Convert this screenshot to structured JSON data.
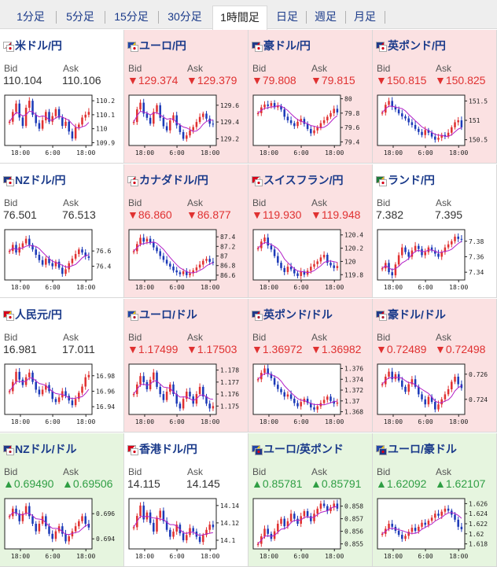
{
  "tabs": [
    {
      "label": "1分足",
      "active": false
    },
    {
      "label": "5分足",
      "active": false
    },
    {
      "label": "15分足",
      "active": false
    },
    {
      "label": "30分足",
      "active": false
    },
    {
      "label": "1時間足",
      "active": true
    },
    {
      "label": "日足",
      "active": false
    },
    {
      "label": "週足",
      "active": false
    },
    {
      "label": "月足",
      "active": false
    }
  ],
  "bid_label": "Bid",
  "ask_label": "Ask",
  "colors": {
    "down": "#e03131",
    "up": "#2f9e44",
    "title": "#1a3a8a",
    "ma_line": "#b320c8"
  },
  "pairs": [
    {
      "name": "米ドル/円",
      "flags": [
        "us",
        "jp"
      ],
      "bid": "110.104",
      "ask": "110.106",
      "trend": "neutral",
      "chart_data": {
        "type": "candlestick",
        "yticks": [
          "110.2",
          "110.1",
          "110",
          "109.9"
        ],
        "ylim": [
          109.88,
          110.24
        ],
        "xticks": [
          "18:00",
          "6:00",
          "18:00"
        ],
        "path": [
          110.05,
          110.12,
          110.18,
          110.08,
          110.02,
          110.15,
          110.2,
          110.1,
          110.04,
          110.0,
          110.06,
          110.12,
          110.05,
          110.09,
          110.14,
          110.08,
          110.02,
          110.05,
          109.98,
          109.93,
          110.01,
          110.03,
          110.08,
          110.1,
          110.12
        ]
      }
    },
    {
      "name": "ユーロ/円",
      "flags": [
        "eu",
        "jp"
      ],
      "bid": "▼129.374",
      "ask": "▼129.379",
      "trend": "down",
      "chart_data": {
        "type": "candlestick",
        "yticks": [
          "129.6",
          "129.4",
          "129.2"
        ],
        "ylim": [
          129.12,
          129.72
        ],
        "xticks": [
          "18:00",
          "6:00",
          "18:00"
        ],
        "path": [
          129.4,
          129.55,
          129.63,
          129.5,
          129.45,
          129.38,
          129.52,
          129.6,
          129.45,
          129.35,
          129.3,
          129.42,
          129.48,
          129.36,
          129.28,
          129.2,
          129.24,
          129.3,
          129.34,
          129.4,
          129.46,
          129.5,
          129.44,
          129.38,
          129.37
        ]
      }
    },
    {
      "name": "豪ドル/円",
      "flags": [
        "au",
        "jp"
      ],
      "bid": "▼79.808",
      "ask": "▼79.815",
      "trend": "down",
      "chart_data": {
        "type": "candlestick",
        "yticks": [
          "80",
          "79.8",
          "79.6",
          "79.4"
        ],
        "ylim": [
          79.35,
          80.05
        ],
        "xticks": [
          "18:00",
          "6:00",
          "18:00"
        ],
        "path": [
          79.8,
          79.88,
          79.92,
          79.9,
          79.94,
          79.88,
          79.9,
          79.85,
          79.75,
          79.7,
          79.66,
          79.62,
          79.68,
          79.72,
          79.65,
          79.58,
          79.52,
          79.56,
          79.6,
          79.66,
          79.7,
          79.75,
          79.8,
          79.86,
          79.81
        ]
      }
    },
    {
      "name": "英ポンド/円",
      "flags": [
        "uk",
        "jp"
      ],
      "bid": "▼150.815",
      "ask": "▼150.825",
      "trend": "down",
      "chart_data": {
        "type": "candlestick",
        "yticks": [
          "151.5",
          "151",
          "150.5"
        ],
        "ylim": [
          150.35,
          151.65
        ],
        "xticks": [
          "18:00",
          "6:00",
          "18:00"
        ],
        "path": [
          151.2,
          151.4,
          151.5,
          151.35,
          151.28,
          151.18,
          151.1,
          151.05,
          150.95,
          150.88,
          150.78,
          150.7,
          150.62,
          150.75,
          150.68,
          150.58,
          150.5,
          150.55,
          150.62,
          150.58,
          150.68,
          150.82,
          150.95,
          151.0,
          150.82
        ]
      }
    },
    {
      "name": "NZドル/円",
      "flags": [
        "nz",
        "jp"
      ],
      "bid": "76.501",
      "ask": "76.513",
      "trend": "neutral",
      "chart_data": {
        "type": "candlestick",
        "yticks": [
          "76.6",
          "76.4"
        ],
        "ylim": [
          76.22,
          76.88
        ],
        "xticks": [
          "18:00",
          "6:00",
          "18:00"
        ],
        "path": [
          76.6,
          76.68,
          76.58,
          76.65,
          76.7,
          76.76,
          76.68,
          76.62,
          76.55,
          76.48,
          76.42,
          76.5,
          76.44,
          76.4,
          76.46,
          76.38,
          76.3,
          76.36,
          76.44,
          76.5,
          76.56,
          76.62,
          76.58,
          76.53,
          76.51
        ]
      }
    },
    {
      "name": "カナダドル/円",
      "flags": [
        "ca",
        "jp"
      ],
      "bid": "▼86.860",
      "ask": "▼86.877",
      "trend": "down",
      "chart_data": {
        "type": "candlestick",
        "yticks": [
          "87.4",
          "87.2",
          "87",
          "86.8",
          "86.6"
        ],
        "ylim": [
          86.5,
          87.55
        ],
        "xticks": [
          "18:00",
          "6:00",
          "18:00"
        ],
        "path": [
          87.1,
          87.25,
          87.38,
          87.3,
          87.36,
          87.28,
          87.18,
          87.1,
          87.0,
          86.92,
          86.84,
          86.78,
          86.7,
          86.66,
          86.62,
          86.68,
          86.6,
          86.64,
          86.7,
          86.76,
          86.82,
          86.9,
          86.94,
          86.88,
          86.86
        ]
      }
    },
    {
      "name": "スイスフラン/円",
      "flags": [
        "ch",
        "jp"
      ],
      "bid": "▼119.930",
      "ask": "▼119.948",
      "trend": "down",
      "chart_data": {
        "type": "candlestick",
        "yticks": [
          "120.4",
          "120.2",
          "120",
          "119.8"
        ],
        "ylim": [
          119.72,
          120.48
        ],
        "xticks": [
          "18:00",
          "6:00",
          "18:00"
        ],
        "path": [
          120.2,
          120.3,
          120.36,
          120.24,
          120.18,
          120.08,
          119.98,
          119.9,
          119.84,
          119.92,
          119.88,
          119.82,
          119.78,
          119.85,
          119.8,
          119.86,
          119.92,
          119.96,
          120.0,
          120.06,
          120.1,
          119.98,
          119.94,
          119.9,
          119.93
        ]
      }
    },
    {
      "name": "ランド/円",
      "flags": [
        "za",
        "jp"
      ],
      "bid": "7.382",
      "ask": "7.395",
      "trend": "neutral",
      "chart_data": {
        "type": "candlestick",
        "yticks": [
          "7.38",
          "7.36",
          "7.34"
        ],
        "ylim": [
          7.33,
          7.395
        ],
        "xticks": [
          "18:00",
          "6:00",
          "18:00"
        ],
        "path": [
          7.345,
          7.352,
          7.34,
          7.336,
          7.35,
          7.362,
          7.372,
          7.366,
          7.36,
          7.368,
          7.374,
          7.37,
          7.362,
          7.366,
          7.372,
          7.368,
          7.364,
          7.36,
          7.366,
          7.372,
          7.376,
          7.38,
          7.386,
          7.383,
          7.382
        ]
      }
    },
    {
      "name": "人民元/円",
      "flags": [
        "cn",
        "jp"
      ],
      "bid": "16.981",
      "ask": "17.011",
      "trend": "neutral",
      "chart_data": {
        "type": "candlestick",
        "yticks": [
          "16.98",
          "16.96",
          "16.94"
        ],
        "ylim": [
          16.93,
          16.995
        ],
        "xticks": [
          "18:00",
          "6:00",
          "18:00"
        ],
        "path": [
          16.96,
          16.972,
          16.985,
          16.975,
          16.968,
          16.978,
          16.984,
          16.972,
          16.962,
          16.956,
          16.962,
          16.968,
          16.96,
          16.95,
          16.946,
          16.952,
          16.96,
          16.954,
          16.948,
          16.942,
          16.95,
          16.958,
          16.966,
          16.978,
          16.981
        ]
      }
    },
    {
      "name": "ユーロ/ドル",
      "flags": [
        "eu",
        "us"
      ],
      "bid": "▼1.17499",
      "ask": "▼1.17503",
      "trend": "down",
      "chart_data": {
        "type": "candlestick",
        "yticks": [
          "1.178",
          "1.177",
          "1.176",
          "1.175"
        ],
        "ylim": [
          1.1743,
          1.1785
        ],
        "xticks": [
          "18:00",
          "6:00",
          "18:00"
        ],
        "path": [
          1.176,
          1.1768,
          1.1775,
          1.177,
          1.1764,
          1.1772,
          1.1778,
          1.1766,
          1.176,
          1.1755,
          1.1762,
          1.1768,
          1.176,
          1.1752,
          1.1748,
          1.1756,
          1.1762,
          1.1758,
          1.1752,
          1.176,
          1.1766,
          1.1758,
          1.1752,
          1.1748,
          1.175
        ]
      }
    },
    {
      "name": "英ポンド/ドル",
      "flags": [
        "uk",
        "us"
      ],
      "bid": "▼1.36972",
      "ask": "▼1.36982",
      "trend": "down",
      "chart_data": {
        "type": "candlestick",
        "yticks": [
          "1.376",
          "1.374",
          "1.372",
          "1.37",
          "1.368"
        ],
        "ylim": [
          1.3675,
          1.3768
        ],
        "xticks": [
          "18:00",
          "6:00",
          "18:00"
        ],
        "path": [
          1.374,
          1.3752,
          1.376,
          1.375,
          1.3742,
          1.373,
          1.3722,
          1.3716,
          1.3708,
          1.3712,
          1.3704,
          1.3696,
          1.369,
          1.3698,
          1.3704,
          1.3696,
          1.3688,
          1.3684,
          1.369,
          1.3696,
          1.3702,
          1.3708,
          1.37,
          1.3695,
          1.3697
        ]
      }
    },
    {
      "name": "豪ドル/ドル",
      "flags": [
        "au",
        "us"
      ],
      "bid": "▼0.72489",
      "ask": "▼0.72498",
      "trend": "down",
      "chart_data": {
        "type": "candlestick",
        "yticks": [
          "0.726",
          "0.724"
        ],
        "ylim": [
          0.7228,
          0.7268
        ],
        "xticks": [
          "18:00",
          "6:00",
          "18:00"
        ],
        "path": [
          0.7252,
          0.7258,
          0.7262,
          0.7256,
          0.726,
          0.7255,
          0.725,
          0.7246,
          0.7252,
          0.7256,
          0.725,
          0.7244,
          0.724,
          0.7236,
          0.7242,
          0.7238,
          0.7232,
          0.7236,
          0.724,
          0.7244,
          0.7248,
          0.7254,
          0.7258,
          0.7252,
          0.7249
        ]
      }
    },
    {
      "name": "NZドル/ドル",
      "flags": [
        "nz",
        "us"
      ],
      "bid": "▲0.69490",
      "ask": "▲0.69506",
      "trend": "up",
      "chart_data": {
        "type": "candlestick",
        "yticks": [
          "0.696",
          "0.694"
        ],
        "ylim": [
          0.6932,
          0.6972
        ],
        "xticks": [
          "18:00",
          "6:00",
          "18:00"
        ],
        "path": [
          0.6958,
          0.6964,
          0.696,
          0.6954,
          0.696,
          0.6966,
          0.6958,
          0.6952,
          0.6946,
          0.6952,
          0.6958,
          0.695,
          0.6944,
          0.694,
          0.6946,
          0.695,
          0.6944,
          0.6938,
          0.6942,
          0.6946,
          0.695,
          0.6954,
          0.6958,
          0.6952,
          0.6949
        ]
      }
    },
    {
      "name": "香港ドル/円",
      "flags": [
        "hk",
        "jp"
      ],
      "bid": "14.115",
      "ask": "14.145",
      "trend": "neutral",
      "chart_data": {
        "type": "candlestick",
        "yticks": [
          "14.14",
          "14.12",
          "14.1"
        ],
        "ylim": [
          14.09,
          14.148
        ],
        "xticks": [
          "18:00",
          "6:00",
          "18:00"
        ],
        "path": [
          14.115,
          14.128,
          14.14,
          14.124,
          14.132,
          14.12,
          14.11,
          14.126,
          14.134,
          14.122,
          14.112,
          14.104,
          14.11,
          14.118,
          14.108,
          14.1,
          14.106,
          14.114,
          14.11,
          14.104,
          14.098,
          14.106,
          14.112,
          14.118,
          14.115
        ]
      }
    },
    {
      "name": "ユーロ/英ポンド",
      "flags": [
        "eu",
        "uk"
      ],
      "bid": "▲0.85781",
      "ask": "▲0.85791",
      "trend": "up",
      "chart_data": {
        "type": "candlestick",
        "yticks": [
          "0.858",
          "0.857",
          "0.856",
          "0.855"
        ],
        "ylim": [
          0.8546,
          0.8586
        ],
        "xticks": [
          "18:00",
          "6:00",
          "18:00"
        ],
        "path": [
          0.855,
          0.8556,
          0.8562,
          0.8558,
          0.8554,
          0.856,
          0.8566,
          0.857,
          0.8564,
          0.8568,
          0.8574,
          0.857,
          0.8566,
          0.8572,
          0.8576,
          0.8572,
          0.8568,
          0.8574,
          0.8578,
          0.8582,
          0.858,
          0.8576,
          0.8579,
          0.8582,
          0.8578
        ]
      }
    },
    {
      "name": "ユーロ/豪ドル",
      "flags": [
        "eu",
        "au"
      ],
      "bid": "▲1.62092",
      "ask": "▲1.62107",
      "trend": "up",
      "chart_data": {
        "type": "candlestick",
        "yticks": [
          "1.626",
          "1.624",
          "1.622",
          "1.62",
          "1.618"
        ],
        "ylim": [
          1.617,
          1.627
        ],
        "xticks": [
          "18:00",
          "6:00",
          "18:00"
        ],
        "path": [
          1.62,
          1.621,
          1.622,
          1.6214,
          1.6206,
          1.6198,
          1.619,
          1.6196,
          1.6204,
          1.6212,
          1.6206,
          1.6214,
          1.6222,
          1.6218,
          1.6226,
          1.6232,
          1.624,
          1.6236,
          1.6244,
          1.625,
          1.6246,
          1.6238,
          1.6228,
          1.6214,
          1.6209
        ]
      }
    }
  ]
}
